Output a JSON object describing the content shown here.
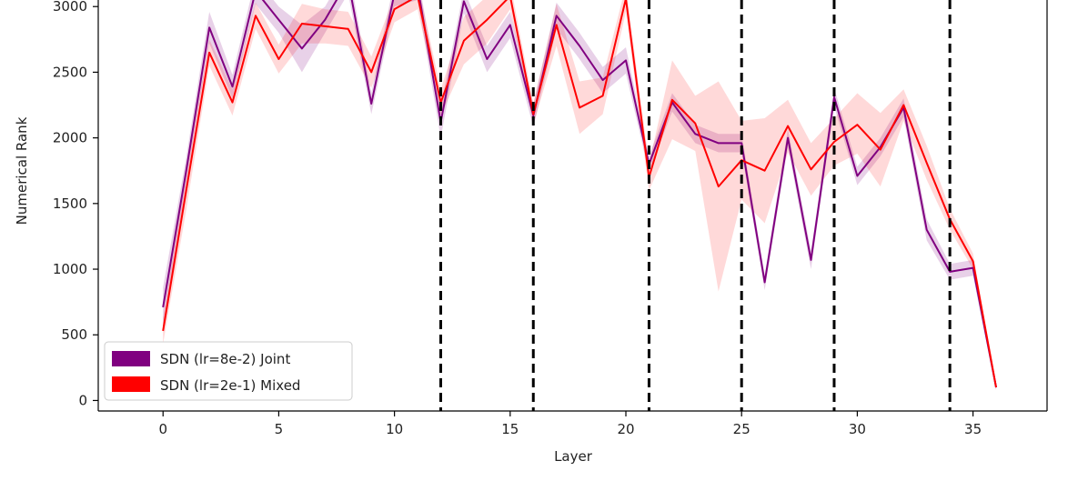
{
  "chart_data": {
    "type": "line",
    "xlabel": "Layer",
    "ylabel": "Numerical Rank",
    "xlim": [
      -2.8,
      38.2
    ],
    "ylim": [
      -80,
      3050
    ],
    "x_ticks": [
      0,
      5,
      10,
      15,
      20,
      25,
      30,
      35
    ],
    "y_ticks": [
      0,
      500,
      1000,
      1500,
      2000,
      2500,
      3000
    ],
    "grid": false,
    "legend_position": "lower-left",
    "vlines": [
      12,
      16,
      21,
      25,
      29,
      34
    ],
    "x": [
      0,
      1,
      2,
      3,
      4,
      5,
      6,
      7,
      8,
      9,
      10,
      11,
      12,
      13,
      14,
      15,
      16,
      17,
      18,
      19,
      20,
      21,
      22,
      23,
      24,
      25,
      26,
      27,
      28,
      29,
      30,
      31,
      32,
      33,
      34,
      35,
      36
    ],
    "series": [
      {
        "name": "SDN (lr=8e-2) Joint",
        "color": "#800080",
        "values": [
          710,
          1750,
          2840,
          2390,
          3120,
          2900,
          2680,
          2900,
          3200,
          2260,
          3100,
          3150,
          2120,
          3040,
          2600,
          2860,
          2170,
          2930,
          2700,
          2440,
          2590,
          1800,
          2270,
          2030,
          1960,
          1960,
          900,
          2000,
          1070,
          2310,
          1710,
          1930,
          2230,
          1300,
          980,
          1010,
          100
        ],
        "band": [
          [
            560,
            860
          ],
          [
            1650,
            1850
          ],
          [
            2720,
            2960
          ],
          [
            2300,
            2480
          ],
          [
            3020,
            3220
          ],
          [
            2800,
            3000
          ],
          [
            2500,
            2860
          ],
          [
            2800,
            3000
          ],
          [
            3100,
            3300
          ],
          [
            2180,
            2340
          ],
          [
            3000,
            3200
          ],
          [
            3050,
            3250
          ],
          [
            2000,
            2240
          ],
          [
            2950,
            3130
          ],
          [
            2500,
            2700
          ],
          [
            2760,
            2960
          ],
          [
            2080,
            2260
          ],
          [
            2830,
            3030
          ],
          [
            2600,
            2800
          ],
          [
            2340,
            2540
          ],
          [
            2490,
            2690
          ],
          [
            1740,
            1860
          ],
          [
            2200,
            2340
          ],
          [
            1960,
            2100
          ],
          [
            1890,
            2030
          ],
          [
            1890,
            2030
          ],
          [
            840,
            960
          ],
          [
            1930,
            2070
          ],
          [
            1000,
            1140
          ],
          [
            2240,
            2380
          ],
          [
            1640,
            1780
          ],
          [
            1860,
            2000
          ],
          [
            2160,
            2300
          ],
          [
            1220,
            1380
          ],
          [
            920,
            1040
          ],
          [
            950,
            1070
          ],
          [
            80,
            120
          ]
        ]
      },
      {
        "name": "SDN (lr=2e-1) Mixed",
        "color": "#ff0000",
        "values": [
          530,
          1600,
          2650,
          2270,
          2930,
          2600,
          2870,
          2850,
          2830,
          2500,
          2980,
          3080,
          2270,
          2740,
          2900,
          3080,
          2180,
          2860,
          2230,
          2320,
          3060,
          1700,
          2290,
          2110,
          1630,
          1830,
          1750,
          2090,
          1760,
          1970,
          2100,
          1910,
          2250,
          1810,
          1380,
          1060,
          100
        ],
        "band": [
          [
            430,
            630
          ],
          [
            1450,
            1750
          ],
          [
            2550,
            2750
          ],
          [
            2170,
            2370
          ],
          [
            2830,
            3030
          ],
          [
            2490,
            2710
          ],
          [
            2720,
            3020
          ],
          [
            2720,
            2980
          ],
          [
            2700,
            2960
          ],
          [
            2380,
            2620
          ],
          [
            2880,
            3080
          ],
          [
            2980,
            3180
          ],
          [
            2170,
            2370
          ],
          [
            2560,
            2920
          ],
          [
            2720,
            3080
          ],
          [
            2980,
            3180
          ],
          [
            2100,
            2260
          ],
          [
            2700,
            3020
          ],
          [
            2030,
            2430
          ],
          [
            2180,
            2460
          ],
          [
            2960,
            3160
          ],
          [
            1600,
            1800
          ],
          [
            1990,
            2590
          ],
          [
            1900,
            2320
          ],
          [
            830,
            2430
          ],
          [
            1530,
            2130
          ],
          [
            1350,
            2150
          ],
          [
            1890,
            2290
          ],
          [
            1560,
            1960
          ],
          [
            1790,
            2150
          ],
          [
            1880,
            2340
          ],
          [
            1630,
            2190
          ],
          [
            2130,
            2370
          ],
          [
            1680,
            1940
          ],
          [
            1300,
            1460
          ],
          [
            1000,
            1120
          ],
          [
            80,
            120
          ]
        ]
      }
    ]
  }
}
